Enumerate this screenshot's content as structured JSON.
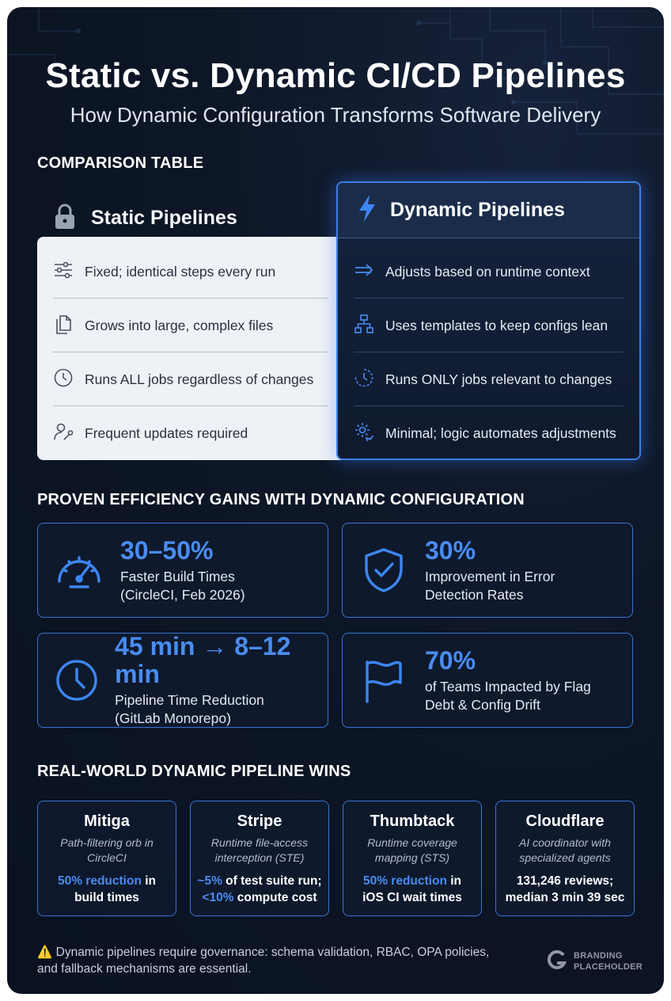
{
  "header": {
    "title": "Static vs. Dynamic CI/CD Pipelines",
    "subtitle": "How Dynamic Configuration Transforms Software Delivery"
  },
  "comparison": {
    "section_title": "COMPARISON TABLE",
    "static": {
      "heading": "Static Pipelines",
      "icon": "lock-icon",
      "rows": [
        {
          "icon": "sliders-icon",
          "text": "Fixed; identical steps every run"
        },
        {
          "icon": "files-icon",
          "text": "Grows into large, complex files"
        },
        {
          "icon": "clock-icon",
          "text": "Runs ALL jobs regardless of changes"
        },
        {
          "icon": "user-wrench-icon",
          "text": "Frequent updates required"
        }
      ]
    },
    "dynamic": {
      "heading": "Dynamic Pipelines",
      "icon": "lightning-icon",
      "rows": [
        {
          "icon": "arrow-right-icon",
          "text": "Adjusts based on runtime context"
        },
        {
          "icon": "hierarchy-icon",
          "text": "Uses templates to keep configs lean"
        },
        {
          "icon": "clock-progress-icon",
          "text": "Runs ONLY jobs relevant to changes"
        },
        {
          "icon": "gear-sync-icon",
          "text": "Minimal; logic automates adjustments"
        }
      ]
    }
  },
  "gains": {
    "section_title": "PROVEN EFFICIENCY GAINS WITH DYNAMIC CONFIGURATION",
    "stats": [
      {
        "icon": "speedometer-icon",
        "value": "30–50%",
        "line1": "Faster Build Times",
        "line2": "(CircleCI, Feb 2026)"
      },
      {
        "icon": "shield-check-icon",
        "value": "30%",
        "line1": "Improvement in Error",
        "line2": "Detection Rates"
      },
      {
        "icon": "clock-icon",
        "value": "45 min → 8–12 min",
        "line1": "Pipeline Time Reduction",
        "line2": "(GitLab Monorepo)"
      },
      {
        "icon": "flag-icon",
        "value": "70%",
        "line1": "of Teams Impacted by Flag",
        "line2": "Debt & Config Drift"
      }
    ]
  },
  "wins": {
    "section_title": "REAL-WORLD DYNAMIC PIPELINE WINS",
    "cases": [
      {
        "name": "Mitiga",
        "sub1": "Path-filtering orb in",
        "sub2": "CircleCI",
        "hl1": "50% reduction",
        "rest1": " in",
        "hl2": "",
        "rest2": "build times"
      },
      {
        "name": "Stripe",
        "sub1": "Runtime file-access",
        "sub2": "interception (STE)",
        "hl1": "~5%",
        "rest1": " of test suite run;",
        "hl2": "<10%",
        "rest2": " compute cost"
      },
      {
        "name": "Thumbtack",
        "sub1": "Runtime coverage",
        "sub2": "mapping (STS)",
        "hl1": "50% reduction",
        "rest1": " in",
        "hl2": "",
        "rest2": "iOS CI wait times"
      },
      {
        "name": "Cloudflare",
        "sub1": "AI coordinator with",
        "sub2": "specialized agents",
        "hl1": "",
        "rest1": "131,246 reviews;",
        "hl2": "",
        "rest2": "median 3 min 39 sec"
      }
    ]
  },
  "footer": {
    "warning_icon": "warning-icon",
    "warning_glyph": "⚠️",
    "text": "Dynamic pipelines require governance: schema validation, RBAC, OPA policies, and fallback mechanisms are essential.",
    "brand_line1": "BRANDING",
    "brand_line2": "PLACEHOLDER"
  },
  "colors": {
    "accent": "#4a8cf0",
    "background": "#0d1626",
    "static_panel": "#eef1f5"
  }
}
